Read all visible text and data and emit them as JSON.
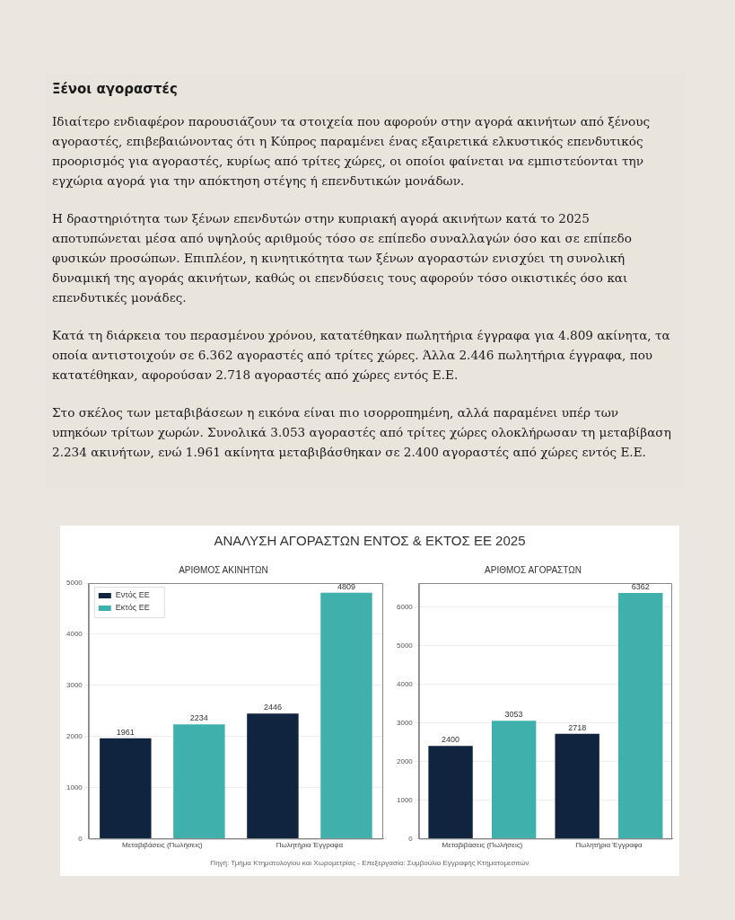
{
  "chart_data": [
    {
      "type": "other",
      "title": "Ξένοι αγοραστές",
      "annotations": [
        "Ιδιαίτερο ενδιαφέρον παρουσιάζουν τα στοιχεία που αφορούν στην αγορά ακινήτων από ξένους αγοραστές, επιβεβαιώνοντας ότι η Κύπρος παραμένει ένας εξαιρετικά ελκυστικός επενδυτικός προορισμός για αγοραστές, κυρίως από τρίτες χώρες, οι οποίοι φαίνεται να εμπιστεύονται την εγχώρια αγορά για την απόκτηση στέγης ή επενδυτικών μονάδων.",
        "Η δραστηριότητα των ξένων επενδυτών στην κυπριακή αγορά ακινήτων κατά το 2025 αποτυπώνεται μέσα από υψηλούς αριθμούς τόσο σε επίπεδο συναλλαγών όσο και σε επίπεδο φυσικών προσώπων. Επιπλέον, η κινητικότητα των ξένων αγοραστών ενισχύει τη συνολική δυναμική της αγοράς ακινήτων, καθώς οι επενδύσεις τους αφορούν τόσο οικιστικές όσο και επενδυτικές μονάδες.",
        "Κατά τη διάρκεια του περασμένου χρόνου, κατατέθηκαν πωλητήρια έγγραφα για 4.809 ακίνητα, τα οποία αντιστοιχούν σε 6.362 αγοραστές από τρίτες χώρες. Άλλα 2.446 πωλητήρια έγγραφα, που κατατέθηκαν, αφορούσαν 2.718 αγοραστές από χώρες εντός Ε.Ε.",
        "Στο σκέλος των μεταβιβάσεων η εικόνα είναι πιο ισορροπημένη, αλλά παραμένει υπέρ των υπηκόων τρίτων χωρών. Συνολικά 3.053 αγοραστές από τρίτες χώρες ολοκλήρωσαν τη μεταβίβαση 2.234 ακινήτων, ενώ 1.961 ακίνητα μεταβιβάσθηκαν σε 2.400 αγοραστές από χώρες εντός Ε.Ε."
      ]
    },
    {
      "type": "bar",
      "title": "ΑΡΙΘΜΟΣ ΑΚΙΝΗΤΩΝ",
      "annotations": [
        "ΑΝΑΛΥΣΗ ΑΓΟΡΑΣΤΩΝ ΕΝΤΟΣ & ΕΚΤΟΣ ΕΕ 2025"
      ],
      "categories": [
        "Μεταβιβάσεις (Πωλήσεις)",
        "Πωλητήρια Έγγραφα"
      ],
      "series": [
        {
          "name": "Εντός ΕΕ",
          "color": "#10233f",
          "values": [
            1961,
            2446
          ]
        },
        {
          "name": "Εκτός ΕΕ",
          "color": "#3fb0ac",
          "values": [
            2234,
            4809
          ]
        }
      ],
      "ylim": [
        0,
        5000
      ],
      "yticks": [
        0,
        1000,
        2000,
        3000,
        4000,
        5000
      ],
      "grid": "y",
      "legend": "top left",
      "data_labels": true
    },
    {
      "type": "bar",
      "title": "ΑΡΙΘΜΟΣ ΑΓΟΡΑΣΤΩΝ",
      "annotations": [
        "Πηγή: Τμήμα Κτηματολογίου και Χωρομετρίας - Επεξεργασία: Συμβούλιο Εγγραφής Κτηματομεσιτών"
      ],
      "categories": [
        "Μεταβιβάσεις (Πωλήσεις)",
        "Πωλητήρια Έγγραφα"
      ],
      "series": [
        {
          "color": "#10233f",
          "values": [
            2400,
            2718
          ]
        },
        {
          "color": "#3fb0ac",
          "values": [
            3053,
            6362
          ]
        }
      ],
      "ylim": [
        0,
        6620
      ],
      "yticks": [
        0,
        1000,
        2000,
        3000,
        4000,
        5000,
        6000
      ],
      "grid": "y",
      "data_labels": true
    }
  ]
}
